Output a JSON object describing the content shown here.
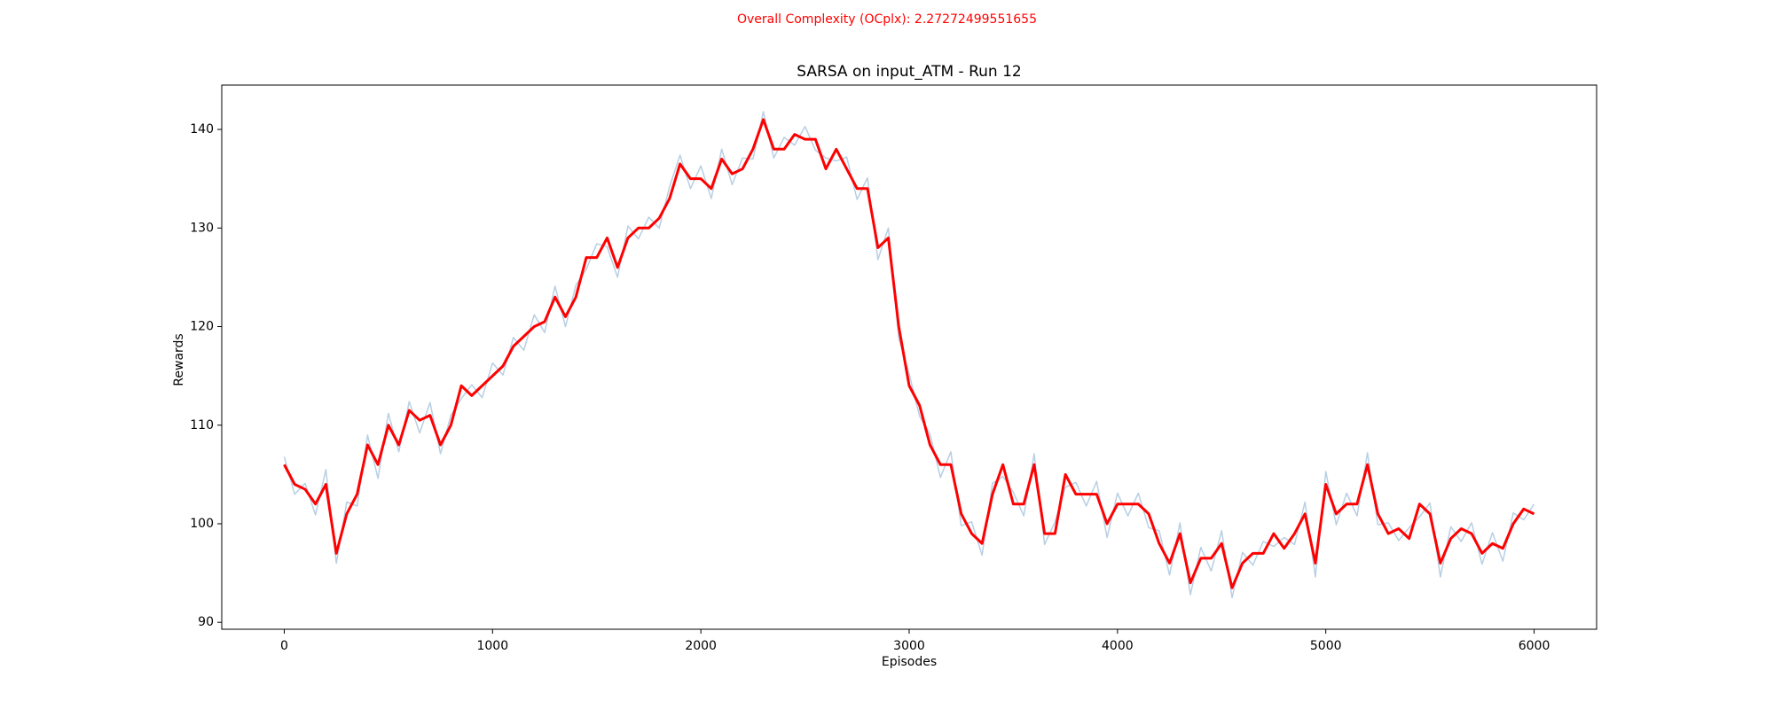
{
  "chart_data": {
    "type": "line",
    "suptitle": "Overall Complexity (OCplx): 2.27272499551655",
    "suptitle_color": "#ff0000",
    "title": "SARSA on input_ATM - Run 12",
    "xlabel": "Episodes",
    "ylabel": "Rewards",
    "x": [
      0,
      50,
      100,
      150,
      200,
      250,
      300,
      350,
      400,
      450,
      500,
      550,
      600,
      650,
      700,
      750,
      800,
      850,
      900,
      950,
      1000,
      1050,
      1100,
      1150,
      1200,
      1250,
      1300,
      1350,
      1400,
      1450,
      1500,
      1550,
      1600,
      1650,
      1700,
      1750,
      1800,
      1850,
      1900,
      1950,
      2000,
      2050,
      2100,
      2150,
      2200,
      2250,
      2300,
      2350,
      2400,
      2450,
      2500,
      2550,
      2600,
      2650,
      2700,
      2750,
      2800,
      2850,
      2900,
      2950,
      3000,
      3050,
      3100,
      3150,
      3200,
      3250,
      3300,
      3350,
      3400,
      3450,
      3500,
      3550,
      3600,
      3650,
      3700,
      3750,
      3800,
      3850,
      3900,
      3950,
      4000,
      4050,
      4100,
      4150,
      4200,
      4250,
      4300,
      4350,
      4400,
      4450,
      4500,
      4550,
      4600,
      4650,
      4700,
      4750,
      4800,
      4850,
      4900,
      4950,
      5000,
      5050,
      5100,
      5150,
      5200,
      5250,
      5300,
      5350,
      5400,
      5450,
      5500,
      5550,
      5600,
      5650,
      5700,
      5750,
      5800,
      5850,
      5900,
      5950,
      6000
    ],
    "series": [
      {
        "color": "#b7cfe4",
        "width": 1.5,
        "values": [
          106.8,
          103.0,
          104.1,
          100.9,
          105.5,
          96.0,
          102.2,
          101.8,
          109.0,
          104.6,
          111.2,
          107.3,
          112.4,
          109.2,
          112.3,
          107.1,
          111.0,
          112.7,
          114.1,
          112.8,
          116.3,
          115.1,
          118.9,
          117.6,
          121.2,
          119.4,
          124.1,
          120.0,
          124.2,
          125.8,
          128.4,
          128.1,
          125.0,
          130.2,
          128.9,
          131.1,
          130.0,
          134.2,
          137.4,
          134.0,
          136.3,
          133.0,
          138.0,
          134.4,
          137.1,
          137.0,
          141.8,
          137.1,
          139.2,
          138.4,
          140.3,
          137.9,
          137.1,
          136.8,
          137.2,
          132.9,
          135.1,
          126.8,
          130.0,
          118.8,
          115.2,
          110.9,
          109.1,
          104.7,
          107.3,
          99.8,
          100.2,
          96.8,
          104.1,
          104.8,
          103.2,
          100.8,
          107.1,
          97.9,
          100.2,
          103.7,
          104.2,
          101.8,
          104.3,
          98.6,
          103.1,
          100.8,
          103.1,
          99.6,
          99.3,
          94.8,
          100.1,
          92.8,
          97.6,
          95.2,
          99.3,
          92.5,
          97.1,
          95.8,
          98.2,
          97.7,
          98.6,
          97.9,
          102.2,
          94.6,
          105.3,
          99.9,
          103.1,
          100.8,
          107.2,
          99.9,
          100.1,
          98.3,
          99.6,
          100.7,
          102.1,
          94.6,
          99.7,
          98.2,
          100.1,
          95.9,
          99.1,
          96.2,
          101.1,
          100.4,
          102.0
        ]
      },
      {
        "color": "#ff0000",
        "width": 3,
        "values": [
          106,
          104,
          103.5,
          102,
          104,
          97,
          101,
          103,
          108,
          106,
          110,
          108,
          111.5,
          110.5,
          111,
          108,
          110,
          114,
          113,
          114,
          115,
          116,
          118,
          119,
          120,
          120.5,
          123,
          121,
          123,
          127,
          127,
          129,
          126,
          129,
          130,
          130,
          131,
          133,
          136.5,
          135,
          135,
          134,
          137,
          135.5,
          136,
          138,
          141,
          138,
          138,
          139.5,
          139,
          139,
          136,
          138,
          136,
          134,
          134,
          128,
          129,
          120,
          114,
          112,
          108,
          106,
          106,
          101,
          99,
          98,
          103,
          106,
          102,
          102,
          106,
          99,
          99,
          105,
          103,
          103,
          103,
          100,
          102,
          102,
          102,
          101,
          98,
          96,
          99,
          94,
          96.5,
          96.5,
          98,
          93.5,
          96,
          97,
          97,
          99,
          97.5,
          99,
          101,
          96,
          104,
          101,
          102,
          102,
          106,
          101,
          99,
          99.5,
          98.5,
          102,
          101,
          96,
          98.5,
          99.5,
          99,
          97,
          98,
          97.5,
          100,
          101.5,
          101
        ]
      }
    ],
    "xlim": [
      -300,
      6300
    ],
    "ylim": [
      89.3,
      144.5
    ],
    "xticks": [
      0,
      1000,
      2000,
      3000,
      4000,
      5000,
      6000
    ],
    "yticks": [
      90,
      100,
      110,
      120,
      130,
      140
    ]
  }
}
